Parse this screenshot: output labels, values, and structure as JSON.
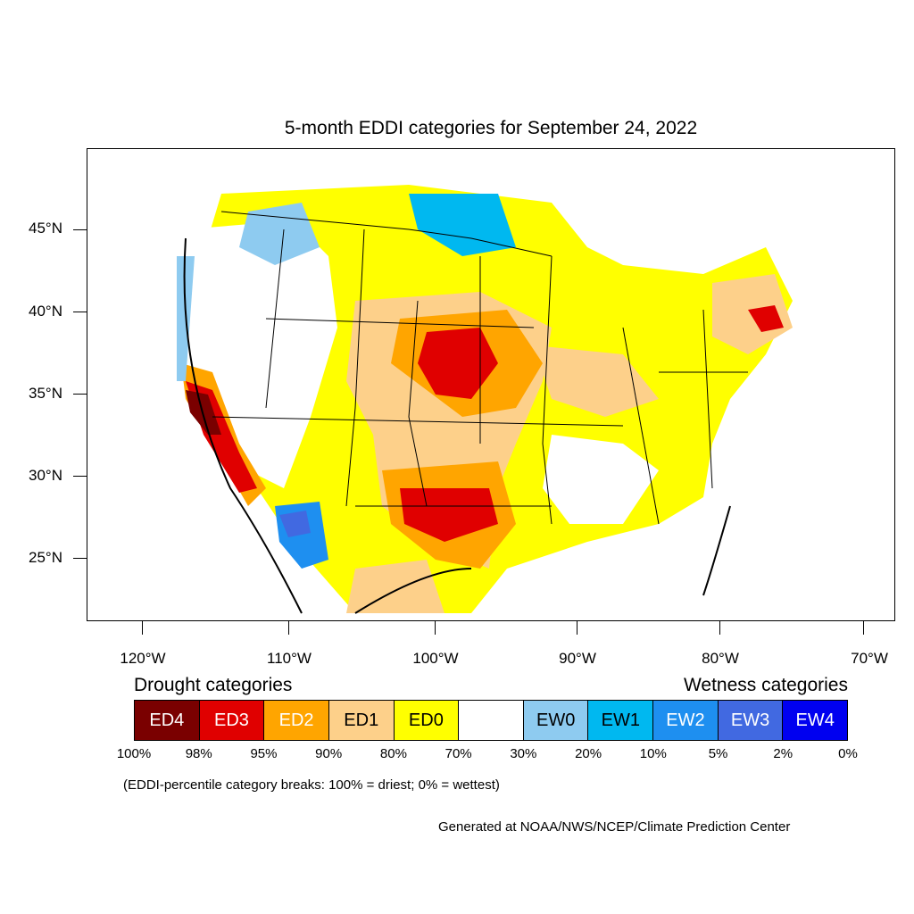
{
  "title": "5-month EDDI categories for September 24, 2022",
  "y_axis_labels": [
    "45°N",
    "40°N",
    "35°N",
    "30°N",
    "25°N"
  ],
  "x_axis_labels": [
    "120°W",
    "110°W",
    "100°W",
    "90°W",
    "80°W",
    "70°W"
  ],
  "legend": {
    "drought_heading": "Drought categories",
    "wetness_heading": "Wetness categories",
    "categories": [
      {
        "label": "ED4",
        "color": "#7a0000",
        "text_color": "#ffffff"
      },
      {
        "label": "ED3",
        "color": "#e00000",
        "text_color": "#ffffff"
      },
      {
        "label": "ED2",
        "color": "#ffa500",
        "text_color": "#ffffff"
      },
      {
        "label": "ED1",
        "color": "#fdd08a",
        "text_color": "#000000"
      },
      {
        "label": "ED0",
        "color": "#ffff00",
        "text_color": "#000000"
      },
      {
        "label": "",
        "color": "#ffffff",
        "text_color": "#000000"
      },
      {
        "label": "EW0",
        "color": "#8ecbf0",
        "text_color": "#000000"
      },
      {
        "label": "EW1",
        "color": "#00b8f0",
        "text_color": "#000000"
      },
      {
        "label": "EW2",
        "color": "#1e8ff0",
        "text_color": "#ffffff"
      },
      {
        "label": "EW3",
        "color": "#4169e1",
        "text_color": "#ffffff"
      },
      {
        "label": "EW4",
        "color": "#0000f0",
        "text_color": "#ffffff"
      }
    ],
    "breaks": [
      "100%",
      "98%",
      "95%",
      "90%",
      "80%",
      "70%",
      "30%",
      "20%",
      "10%",
      "5%",
      "2%",
      "0%"
    ]
  },
  "note": "(EDDI-percentile category breaks: 100% = driest; 0% = wettest)",
  "credit": "Generated at NOAA/NWS/NCEP/Climate Prediction Center"
}
